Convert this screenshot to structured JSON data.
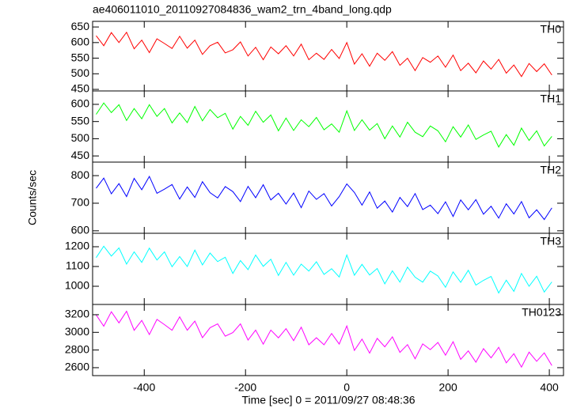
{
  "chart_data": [
    {
      "type": "line",
      "title": "ae406011010_20110927084836_wam2_trn_4band_long.qdp",
      "xlim": [
        -502,
        428
      ],
      "ylim": [
        445,
        668
      ],
      "yticks": [
        450,
        500,
        550,
        600,
        650
      ],
      "x": [
        -495,
        -480,
        -465,
        -450,
        -435,
        -420,
        -405,
        -390,
        -375,
        -360,
        -345,
        -330,
        -315,
        -300,
        -285,
        -270,
        -255,
        -240,
        -225,
        -210,
        -195,
        -180,
        -165,
        -150,
        -135,
        -120,
        -105,
        -90,
        -75,
        -60,
        -45,
        -30,
        -15,
        0,
        15,
        30,
        45,
        60,
        75,
        90,
        105,
        120,
        135,
        150,
        165,
        180,
        195,
        210,
        225,
        240,
        255,
        270,
        285,
        300,
        315,
        330,
        345,
        360,
        375,
        390,
        405
      ],
      "series": [
        {
          "name": "TH0",
          "color": "#ff0000",
          "values": [
            622,
            590,
            632,
            600,
            633,
            580,
            608,
            568,
            612,
            597,
            581,
            620,
            582,
            608,
            562,
            590,
            601,
            567,
            577,
            602,
            557,
            585,
            545,
            586,
            564,
            590,
            557,
            595,
            545,
            566,
            546,
            578,
            549,
            600,
            531,
            564,
            524,
            566,
            543,
            571,
            527,
            550,
            510,
            552,
            537,
            557,
            521,
            560,
            510,
            534,
            503,
            541,
            515,
            546,
            502,
            528,
            491,
            533,
            507,
            532,
            496
          ]
        }
      ]
    },
    {
      "type": "line",
      "xlim": [
        -502,
        428
      ],
      "ylim": [
        432,
        639
      ],
      "yticks": [
        450,
        500,
        550,
        600
      ],
      "x": [
        -495,
        -480,
        -465,
        -450,
        -435,
        -420,
        -405,
        -390,
        -375,
        -360,
        -345,
        -330,
        -315,
        -300,
        -285,
        -270,
        -255,
        -240,
        -225,
        -210,
        -195,
        -180,
        -165,
        -150,
        -135,
        -120,
        -105,
        -90,
        -75,
        -60,
        -45,
        -30,
        -15,
        0,
        15,
        30,
        45,
        60,
        75,
        90,
        105,
        120,
        135,
        150,
        165,
        180,
        195,
        210,
        225,
        240,
        255,
        270,
        285,
        300,
        315,
        330,
        345,
        360,
        375,
        390,
        405
      ],
      "series": [
        {
          "name": "TH1",
          "color": "#00ff00",
          "values": [
            571,
            604,
            576,
            599,
            553,
            588,
            558,
            599,
            565,
            588,
            546,
            575,
            547,
            594,
            552,
            585,
            561,
            574,
            528,
            565,
            539,
            580,
            548,
            569,
            523,
            560,
            524,
            555,
            535,
            562,
            526,
            543,
            519,
            581,
            524,
            555,
            525,
            544,
            500,
            537,
            505,
            548,
            519,
            506,
            537,
            523,
            491,
            535,
            505,
            540,
            498,
            511,
            522,
            476,
            512,
            481,
            531,
            495,
            523,
            479,
            507
          ]
        }
      ]
    },
    {
      "type": "line",
      "y_label": "Counts/sec",
      "xlim": [
        -502,
        428
      ],
      "ylim": [
        591,
        849
      ],
      "yticks": [
        600,
        700,
        800
      ],
      "x": [
        -495,
        -480,
        -465,
        -450,
        -435,
        -420,
        -405,
        -390,
        -375,
        -360,
        -345,
        -330,
        -315,
        -300,
        -285,
        -270,
        -255,
        -240,
        -225,
        -210,
        -195,
        -180,
        -165,
        -150,
        -135,
        -120,
        -105,
        -90,
        -75,
        -60,
        -45,
        -30,
        -15,
        0,
        15,
        30,
        45,
        60,
        75,
        90,
        105,
        120,
        135,
        150,
        165,
        180,
        195,
        210,
        225,
        240,
        255,
        270,
        285,
        300,
        315,
        330,
        345,
        360,
        375,
        390,
        405
      ],
      "series": [
        {
          "name": "TH2",
          "color": "#0000ff",
          "values": [
            754,
            791,
            734,
            771,
            724,
            790,
            749,
            797,
            736,
            751,
            768,
            715,
            759,
            721,
            778,
            738,
            719,
            760,
            742,
            706,
            761,
            720,
            767,
            712,
            736,
            697,
            737,
            684,
            744,
            714,
            735,
            690,
            724,
            770,
            739,
            693,
            741,
            682,
            708,
            668,
            721,
            688,
            735,
            677,
            693,
            662,
            705,
            652,
            712,
            676,
            713,
            660,
            689,
            646,
            698,
            661,
            706,
            647,
            676,
            641,
            683
          ]
        }
      ]
    },
    {
      "type": "line",
      "xlim": [
        -502,
        428
      ],
      "ylim": [
        908,
        1268
      ],
      "yticks": [
        1000,
        1100,
        1200
      ],
      "x": [
        -495,
        -480,
        -465,
        -450,
        -435,
        -420,
        -405,
        -390,
        -375,
        -360,
        -345,
        -330,
        -315,
        -300,
        -285,
        -270,
        -255,
        -240,
        -225,
        -210,
        -195,
        -180,
        -165,
        -150,
        -135,
        -120,
        -105,
        -90,
        -75,
        -60,
        -45,
        -30,
        -15,
        0,
        15,
        30,
        45,
        60,
        75,
        90,
        105,
        120,
        135,
        150,
        165,
        180,
        195,
        210,
        225,
        240,
        255,
        270,
        285,
        300,
        315,
        330,
        345,
        360,
        375,
        390,
        405
      ],
      "series": [
        {
          "name": "TH3",
          "color": "#00ffff",
          "values": [
            1145,
            1203,
            1153,
            1194,
            1112,
            1174,
            1121,
            1193,
            1133,
            1174,
            1099,
            1150,
            1100,
            1183,
            1108,
            1168,
            1125,
            1147,
            1065,
            1130,
            1084,
            1158,
            1101,
            1137,
            1055,
            1121,
            1056,
            1112,
            1077,
            1124,
            1060,
            1089,
            1047,
            1158,
            1056,
            1111,
            1057,
            1090,
            1012,
            1078,
            1021,
            1097,
            1046,
            1021,
            1077,
            1052,
            995,
            1073,
            1020,
            1081,
            1006,
            1030,
            1050,
            966,
            1031,
            974,
            1065,
            1000,
            1051,
            971,
            1022
          ]
        }
      ]
    },
    {
      "type": "line",
      "x_label": "Time [sec] 0 = 2011/09/27 08:48:36",
      "xlim": [
        -502,
        428
      ],
      "xticks": [
        -400,
        -200,
        0,
        200,
        400
      ],
      "ylim": [
        2510,
        3316
      ],
      "yticks": [
        2600,
        2800,
        3000,
        3200
      ],
      "x": [
        -495,
        -480,
        -465,
        -450,
        -435,
        -420,
        -405,
        -390,
        -375,
        -360,
        -345,
        -330,
        -315,
        -300,
        -285,
        -270,
        -255,
        -240,
        -225,
        -210,
        -195,
        -180,
        -165,
        -150,
        -135,
        -120,
        -105,
        -90,
        -75,
        -60,
        -45,
        -30,
        -15,
        0,
        15,
        30,
        45,
        60,
        75,
        90,
        105,
        120,
        135,
        150,
        165,
        180,
        195,
        210,
        225,
        240,
        255,
        270,
        285,
        300,
        315,
        330,
        345,
        360,
        375,
        390,
        405
      ],
      "series": [
        {
          "name": "TH0123",
          "color": "#ff00ff",
          "values": [
            3198,
            3070,
            3234,
            3107,
            3239,
            3023,
            3135,
            2975,
            3147,
            3088,
            3024,
            3176,
            3024,
            3128,
            2940,
            3053,
            3097,
            2957,
            2997,
            3097,
            2913,
            3026,
            2866,
            3026,
            2938,
            3042,
            2906,
            3059,
            2859,
            2939,
            2859,
            2987,
            2867,
            3072,
            2796,
            2924,
            2764,
            2932,
            2836,
            2949,
            2773,
            2861,
            2701,
            2869,
            2805,
            2886,
            2742,
            2894,
            2694,
            2790,
            2662,
            2815,
            2711,
            2831,
            2655,
            2759,
            2607,
            2776,
            2672,
            2768,
            2624
          ]
        }
      ]
    }
  ]
}
